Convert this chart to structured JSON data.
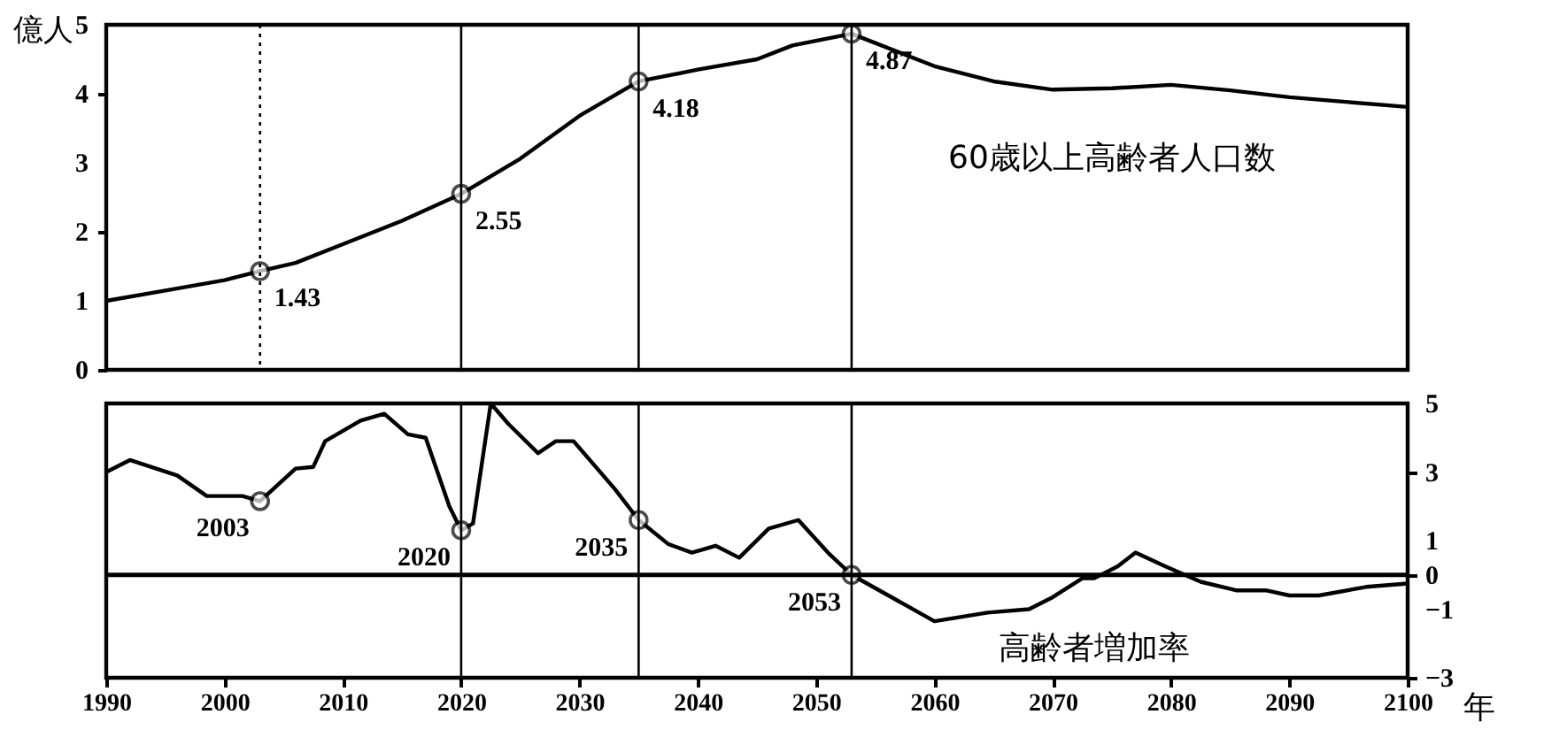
{
  "chart_data": [
    {
      "type": "line",
      "xlim": [
        1990,
        2100
      ],
      "ylim": [
        0,
        5
      ],
      "yticks": [
        0,
        1,
        2,
        3,
        4,
        5
      ],
      "ylabel": "億人",
      "tick_labels": "y",
      "grid": false,
      "series": [
        {
          "name": "60歳以上高齢者人口数",
          "color": "#000000",
          "marker": "none",
          "x": [
            1990,
            1995,
            2000,
            2003,
            2006,
            2010,
            2015,
            2020,
            2025,
            2030,
            2035,
            2040,
            2045,
            2048,
            2053,
            2060,
            2065,
            2070,
            2075,
            2080,
            2085,
            2090,
            2095,
            2100
          ],
          "values": [
            1.0,
            1.15,
            1.3,
            1.43,
            1.55,
            1.82,
            2.16,
            2.55,
            3.06,
            3.68,
            4.18,
            4.35,
            4.5,
            4.7,
            4.87,
            4.4,
            4.18,
            4.06,
            4.08,
            4.13,
            4.05,
            3.95,
            3.88,
            3.81
          ]
        },
        {
          "type": "scatter",
          "color": "#000000",
          "marker": "circle",
          "x": [
            2003,
            2020,
            2035,
            2053
          ],
          "values": [
            1.43,
            2.55,
            4.18,
            4.87
          ],
          "value_labels": [
            "1.43",
            "2.55",
            "4.18",
            "4.87"
          ]
        }
      ],
      "ref_lines": [
        {
          "axis": "x",
          "value": 2003,
          "line_style": "dotted"
        },
        {
          "axis": "x",
          "value": 2020
        },
        {
          "axis": "x",
          "value": 2035
        },
        {
          "axis": "x",
          "value": 2053
        }
      ]
    },
    {
      "type": "line",
      "xlim": [
        1990,
        2100
      ],
      "xticks": [
        1990,
        2000,
        2010,
        2020,
        2030,
        2040,
        2050,
        2060,
        2070,
        2080,
        2090,
        2100
      ],
      "xlabel": "年",
      "y2lim": [
        -3,
        5
      ],
      "y2ticks": [
        5,
        3,
        1,
        0,
        -1,
        -3
      ],
      "grid": false,
      "series": [
        {
          "name": "高齢者増加率",
          "color": "#000000",
          "axis": "y2",
          "marker": "none",
          "x": [
            1990,
            1992,
            1996,
            1998.5,
            2001.5,
            2003,
            2006,
            2007.5,
            2008.5,
            2011.5,
            2013.5,
            2015.5,
            2017,
            2019,
            2020,
            2021,
            2022.5,
            2024,
            2026.5,
            2028,
            2029.5,
            2033,
            2035,
            2037.5,
            2039.5,
            2041.5,
            2043.5,
            2046,
            2048.5,
            2051,
            2053,
            2060,
            2064.5,
            2068,
            2070,
            2072.5,
            2073.5,
            2075.5,
            2077,
            2079.5,
            2082.5,
            2085.5,
            2088,
            2090,
            2092.5,
            2096.5,
            2100
          ],
          "values": [
            3.0,
            3.35,
            2.9,
            2.3,
            2.3,
            2.15,
            3.1,
            3.15,
            3.9,
            4.5,
            4.7,
            4.1,
            4.0,
            2.0,
            1.3,
            1.5,
            5.0,
            4.4,
            3.55,
            3.9,
            3.9,
            2.5,
            1.6,
            0.9,
            0.65,
            0.85,
            0.5,
            1.35,
            1.6,
            0.65,
            0.0,
            -1.35,
            -1.1,
            -1.0,
            -0.65,
            -0.1,
            -0.1,
            0.25,
            0.65,
            0.25,
            -0.2,
            -0.45,
            -0.45,
            -0.6,
            -0.6,
            -0.35,
            -0.25
          ]
        },
        {
          "type": "scatter",
          "color": "#000000",
          "axis": "y2",
          "marker": "circle",
          "x": [
            2003,
            2020,
            2035,
            2053
          ],
          "values": [
            2.15,
            1.3,
            1.6,
            0.0
          ]
        }
      ],
      "ref_lines": [
        {
          "axis": "x",
          "value": 2020
        },
        {
          "axis": "x",
          "value": 2035
        },
        {
          "axis": "x",
          "value": 2053
        },
        {
          "axis": "y2",
          "value": 0
        }
      ],
      "annotations": [
        "2003",
        "2020",
        "2035",
        "2053"
      ]
    }
  ]
}
